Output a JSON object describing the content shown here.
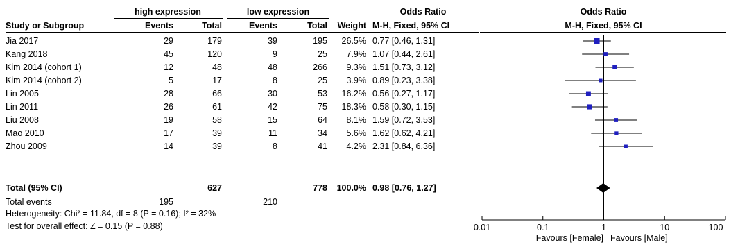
{
  "header": {
    "group1": "high expression",
    "group2": "low expression",
    "odds_ratio": "Odds Ratio",
    "odds_ratio_plot": "Odds Ratio",
    "col_study": "Study or Subgroup",
    "col_events1": "Events",
    "col_total1": "Total",
    "col_events2": "Events",
    "col_total2": "Total",
    "col_weight": "Weight",
    "col_method": "M-H, Fixed, 95% CI",
    "col_method_plot": "M-H, Fixed, 95% CI"
  },
  "studies": [
    {
      "name": "Jia 2017",
      "events1": "29",
      "total1": "179",
      "events2": "39",
      "total2": "195",
      "weight": "26.5%",
      "or_text": "0.77 [0.46, 1.31]",
      "or": 0.77,
      "lo": 0.46,
      "hi": 1.31,
      "w": 26.5
    },
    {
      "name": "Kang 2018",
      "events1": "45",
      "total1": "120",
      "events2": "9",
      "total2": "25",
      "weight": "7.9%",
      "or_text": "1.07 [0.44, 2.61]",
      "or": 1.07,
      "lo": 0.44,
      "hi": 2.61,
      "w": 7.9
    },
    {
      "name": "Kim 2014 (cohort 1)",
      "events1": "12",
      "total1": "48",
      "events2": "48",
      "total2": "266",
      "weight": "9.3%",
      "or_text": "1.51 [0.73, 3.12]",
      "or": 1.51,
      "lo": 0.73,
      "hi": 3.12,
      "w": 9.3
    },
    {
      "name": "Kim 2014 (cohort 2)",
      "events1": "5",
      "total1": "17",
      "events2": "8",
      "total2": "25",
      "weight": "3.9%",
      "or_text": "0.89 [0.23, 3.38]",
      "or": 0.89,
      "lo": 0.23,
      "hi": 3.38,
      "w": 3.9
    },
    {
      "name": "Lin 2005",
      "events1": "28",
      "total1": "66",
      "events2": "30",
      "total2": "53",
      "weight": "16.2%",
      "or_text": "0.56 [0.27, 1.17]",
      "or": 0.56,
      "lo": 0.27,
      "hi": 1.17,
      "w": 16.2
    },
    {
      "name": "Lin 2011",
      "events1": "26",
      "total1": "61",
      "events2": "42",
      "total2": "75",
      "weight": "18.3%",
      "or_text": "0.58 [0.30, 1.15]",
      "or": 0.58,
      "lo": 0.3,
      "hi": 1.15,
      "w": 18.3
    },
    {
      "name": "Liu 2008",
      "events1": "19",
      "total1": "58",
      "events2": "15",
      "total2": "64",
      "weight": "8.1%",
      "or_text": "1.59 [0.72, 3.53]",
      "or": 1.59,
      "lo": 0.72,
      "hi": 3.53,
      "w": 8.1
    },
    {
      "name": "Mao 2010",
      "events1": "17",
      "total1": "39",
      "events2": "11",
      "total2": "34",
      "weight": "5.6%",
      "or_text": "1.62 [0.62, 4.21]",
      "or": 1.62,
      "lo": 0.62,
      "hi": 4.21,
      "w": 5.6
    },
    {
      "name": "Zhou 2009",
      "events1": "14",
      "total1": "39",
      "events2": "8",
      "total2": "41",
      "weight": "4.2%",
      "or_text": "2.31 [0.84, 6.36]",
      "or": 2.31,
      "lo": 0.84,
      "hi": 6.36,
      "w": 4.2
    }
  ],
  "total": {
    "label": "Total (95% CI)",
    "total1": "627",
    "total2": "778",
    "weight": "100.0%",
    "or_text": "0.98 [0.76, 1.27]",
    "or": 0.98,
    "lo": 0.76,
    "hi": 1.27
  },
  "total_events": {
    "label": "Total events",
    "events1": "195",
    "events2": "210"
  },
  "heterogeneity": "Heterogeneity: Chi² = 11.84, df = 8 (P = 0.16); I² = 32%",
  "overall_effect": "Test for overall effect: Z = 0.15 (P = 0.88)",
  "chart_data": {
    "type": "scatter",
    "title": "",
    "x_scale": "log",
    "xlim": [
      0.01,
      100
    ],
    "ticks": [
      0.01,
      0.1,
      1,
      10,
      100
    ],
    "tick_labels": [
      "0.01",
      "0.1",
      "1",
      "10",
      "100"
    ],
    "reference_line": 1,
    "favours_left": "Favours [Female]",
    "favours_right": "Favours [Male]",
    "marker_color": "#1f1fbf"
  }
}
